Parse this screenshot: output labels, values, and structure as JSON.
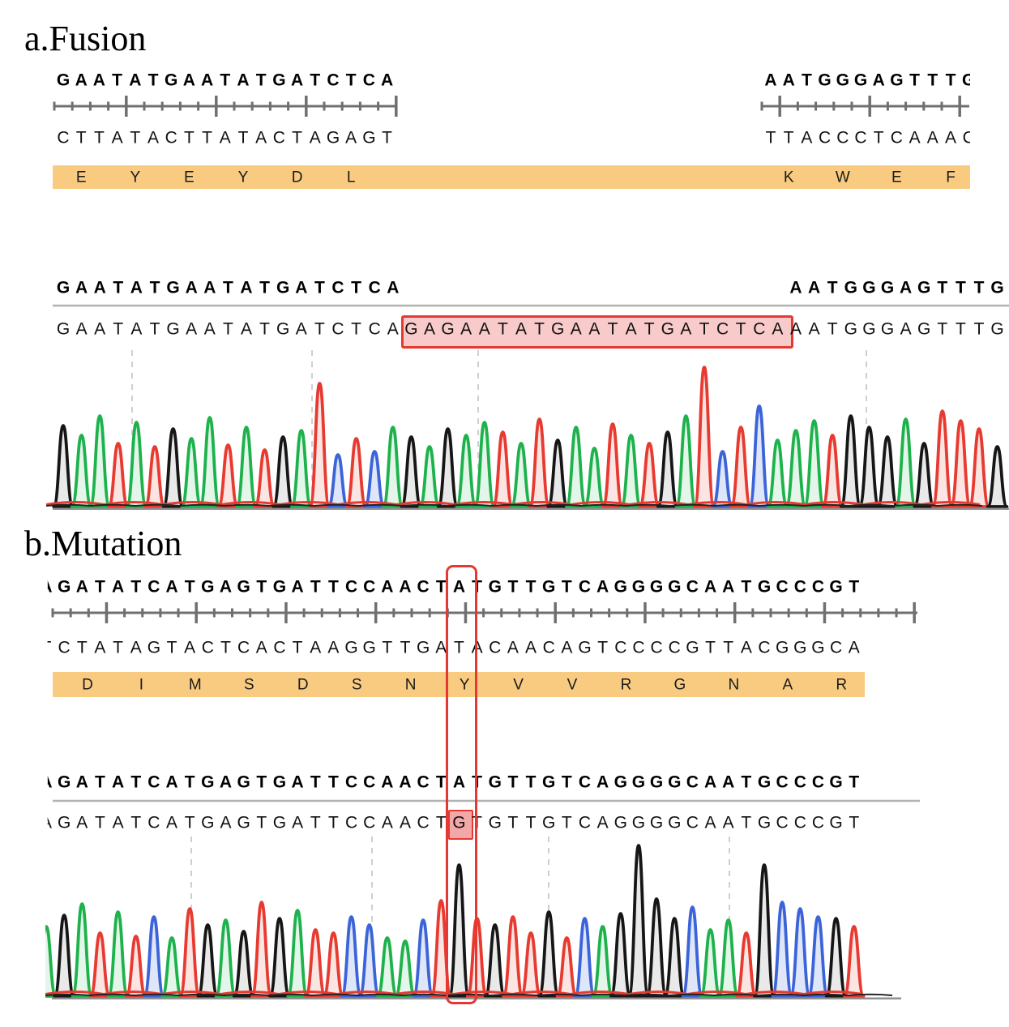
{
  "colors": {
    "trace_A_green": "#1db24c",
    "trace_C_blue": "#3c64d9",
    "trace_G_black": "#161616",
    "trace_T_red": "#e73a30",
    "fill_A": "#e4f6e9",
    "fill_C": "#dfe6f7",
    "fill_G": "#e9e9e9",
    "fill_T": "#fbe5e3",
    "amino_band": "#f9cb80",
    "highlight_red": "#e63832",
    "insertion_fill": "#f9caca",
    "mutated_base_fill": "#f2a8a8",
    "ruler_gray": "#6f6f6f",
    "divider_gray": "#b2b2b2",
    "baseline_gray": "#909090",
    "gridline_gray": "#c3c3c3"
  },
  "panel_a": {
    "title": "a.Fusion",
    "top": {
      "seq_left": "GAATATGAATATGATCTCA",
      "comp_left": "CTTATACTTATACTAGAGT",
      "aa_left": [
        "E",
        "Y",
        "E",
        "Y",
        "D",
        "L"
      ],
      "seq_right": "AATGGGAGTTTG",
      "comp_right": "TTACCCTCAAAC",
      "aa_right": [
        "K",
        "W",
        "E",
        "F"
      ]
    },
    "align": {
      "ref_left": "GAATATGAATATGATCTCA",
      "ref_right": "AATGGGAGTTTG",
      "read": "GAATATGAATATGATCTCAGAGAATATGAATATGATCTCAAATGGGAGTTTG",
      "insertion_start": 19,
      "insertion_end": 40
    }
  },
  "panel_b": {
    "title": "b.Mutation",
    "top": {
      "seq": "AGATATCATGAGTGATTCCAACTATGTTGTCAGGGGCAATGCCCGT",
      "comp": "TCTATAGTACTCACTAAGGTTGATACAACAGTCCCCGTTACGGGCA",
      "aa": [
        "D",
        "I",
        "M",
        "S",
        "D",
        "S",
        "N",
        "Y",
        "V",
        "V",
        "R",
        "G",
        "N",
        "A",
        "R"
      ]
    },
    "align": {
      "ref": "AGATATCATGAGTGATTCCAACTATGTTGTCAGGGGCAATGCCCGT",
      "read": "AGATATCATGAGTGATTCCAACTGTGTTGTCAGGGGCAATGCCCGT",
      "mutation_index": 23,
      "ref_base": "A",
      "read_base": "G"
    }
  },
  "chart_data": [
    {
      "type": "area",
      "title": "a.Fusion Sanger chromatogram",
      "bases": "GAATATGAATATGATCTCAGAGAATATGAATATGATCTCAAATGGGAGTTTG",
      "peak_heights": [
        100,
        88,
        112,
        78,
        104,
        74,
        96,
        84,
        110,
        76,
        98,
        70,
        86,
        94,
        152,
        64,
        84,
        68,
        98,
        86,
        74,
        96,
        88,
        104,
        92,
        78,
        108,
        82,
        98,
        72,
        102,
        88,
        78,
        92,
        112,
        172,
        68,
        98,
        124,
        82,
        94,
        106,
        88,
        112,
        98,
        86,
        108,
        78,
        118,
        106,
        96,
        74
      ],
      "base_color_legend": {
        "A": "green",
        "C": "blue",
        "G": "black",
        "T": "red"
      },
      "highlight": "insertion GAGAATATGAATATGATCTCA boxed in red",
      "grid": "dashed vertical guides, no axis labels"
    },
    {
      "type": "area",
      "title": "b.Mutation Sanger chromatogram",
      "bases": "AGATATCATGAGTGATTCCAACTGTGTTGTCAGGGGCAATGCCCGT",
      "peak_heights": [
        86,
        100,
        114,
        78,
        104,
        74,
        98,
        72,
        108,
        88,
        94,
        80,
        116,
        96,
        106,
        82,
        78,
        98,
        88,
        72,
        68,
        94,
        118,
        162,
        96,
        88,
        98,
        78,
        104,
        72,
        96,
        86,
        102,
        186,
        120,
        96,
        110,
        82,
        94,
        78,
        162,
        116,
        108,
        98,
        96,
        86
      ],
      "base_color_legend": {
        "A": "green",
        "C": "blue",
        "G": "black",
        "T": "red"
      },
      "highlight": "mutated base G (ref A) boxed in red at index 23",
      "grid": "dashed vertical guides, no axis labels"
    }
  ]
}
